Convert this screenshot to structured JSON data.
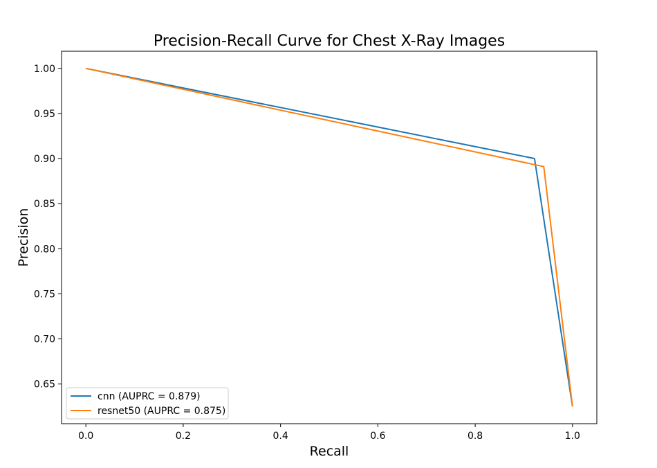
{
  "chart_data": {
    "type": "line",
    "title": "Precision-Recall Curve for Chest X-Ray Images",
    "xlabel": "Recall",
    "ylabel": "Precision",
    "xlim": [
      -0.05,
      1.05
    ],
    "ylim": [
      0.606,
      1.019
    ],
    "xticks": [
      0.0,
      0.2,
      0.4,
      0.6,
      0.8,
      1.0
    ],
    "xtick_labels": [
      "0.0",
      "0.2",
      "0.4",
      "0.6",
      "0.8",
      "1.0"
    ],
    "yticks": [
      0.65,
      0.7,
      0.75,
      0.8,
      0.85,
      0.9,
      0.95,
      1.0
    ],
    "ytick_labels": [
      "0.65",
      "0.70",
      "0.75",
      "0.80",
      "0.85",
      "0.90",
      "0.95",
      "1.00"
    ],
    "grid": false,
    "legend_position": "lower-left",
    "series": [
      {
        "name": "cnn (AUPRC = 0.879)",
        "color": "#1f77b4",
        "x": [
          0.0,
          0.922,
          1.0
        ],
        "y": [
          1.0,
          0.9,
          0.625
        ]
      },
      {
        "name": "resnet50 (AUPRC = 0.875)",
        "color": "#ff7f0e",
        "x": [
          0.0,
          0.941,
          1.0
        ],
        "y": [
          1.0,
          0.891,
          0.625
        ]
      }
    ]
  }
}
